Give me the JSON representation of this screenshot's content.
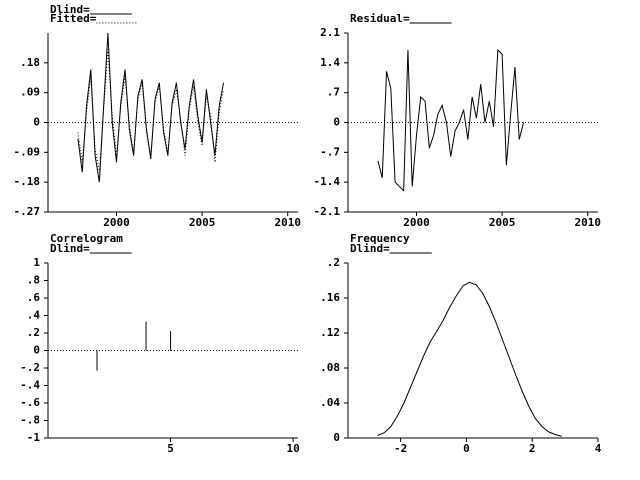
{
  "chart_data": [
    {
      "type": "line",
      "x": [
        1997.75,
        1998,
        1998.25,
        1998.5,
        1998.75,
        1999,
        1999.25,
        1999.5,
        1999.75,
        2000,
        2000.25,
        2000.5,
        2000.75,
        2001,
        2001.25,
        2001.5,
        2001.75,
        2002,
        2002.25,
        2002.5,
        2002.75,
        2003,
        2003.25,
        2003.5,
        2003.75,
        2004,
        2004.25,
        2004.5,
        2004.75,
        2005,
        2005.25,
        2005.5,
        2005.75,
        2006,
        2006.25
      ],
      "series": [
        {
          "name": "Dlind=",
          "color": "#000000",
          "linestyle": "solid",
          "values": [
            -0.05,
            -0.15,
            0.05,
            0.16,
            -0.1,
            -0.18,
            0.05,
            0.27,
            0.0,
            -0.12,
            0.06,
            0.16,
            -0.02,
            -0.1,
            0.08,
            0.13,
            -0.02,
            -0.11,
            0.07,
            0.12,
            -0.03,
            -0.1,
            0.06,
            0.12,
            0.0,
            -0.08,
            0.05,
            0.13,
            0.02,
            -0.06,
            0.1,
            0.0,
            -0.1,
            0.05,
            0.12
          ]
        },
        {
          "name": "Fitted=",
          "color": "#000000",
          "linestyle": "dotted",
          "values": [
            -0.03,
            -0.12,
            0.03,
            0.14,
            -0.08,
            -0.15,
            0.04,
            0.22,
            0.02,
            -0.1,
            0.05,
            0.14,
            -0.01,
            -0.09,
            0.07,
            0.12,
            -0.03,
            -0.1,
            0.06,
            0.11,
            -0.02,
            -0.09,
            0.05,
            0.1,
            0.01,
            -0.1,
            0.04,
            0.11,
            0.0,
            -0.07,
            0.08,
            0.02,
            -0.12,
            0.03,
            0.1
          ]
        }
      ],
      "xlim": [
        1996,
        2010.6
      ],
      "xticks": [
        2000,
        2005,
        2010
      ],
      "ylim": [
        -0.27,
        0.27
      ],
      "yticks": [
        {
          "value": -0.27,
          "label": "-.27"
        },
        {
          "value": -0.18,
          "label": "-.18"
        },
        {
          "value": -0.09,
          "label": "-.09"
        },
        0,
        {
          "value": 0.09,
          "label": ".09"
        },
        {
          "value": 0.18,
          "label": ".18"
        }
      ]
    },
    {
      "type": "line",
      "x": [
        1997.75,
        1998,
        1998.25,
        1998.5,
        1998.75,
        1999,
        1999.25,
        1999.5,
        1999.75,
        2000,
        2000.25,
        2000.5,
        2000.75,
        2001,
        2001.25,
        2001.5,
        2001.75,
        2002,
        2002.25,
        2002.5,
        2002.75,
        2003,
        2003.25,
        2003.5,
        2003.75,
        2004,
        2004.25,
        2004.5,
        2004.75,
        2005,
        2005.25,
        2005.5,
        2005.75,
        2006,
        2006.25
      ],
      "series": [
        {
          "name": "Residual=",
          "color": "#000000",
          "linestyle": "solid",
          "values": [
            -0.9,
            -1.3,
            1.2,
            0.8,
            -1.4,
            -1.5,
            -1.6,
            1.7,
            -1.5,
            -0.3,
            0.6,
            0.5,
            -0.6,
            -0.3,
            0.2,
            0.4,
            0.0,
            -0.8,
            -0.2,
            0.0,
            0.3,
            -0.4,
            0.6,
            0.1,
            0.9,
            0.0,
            0.5,
            -0.1,
            1.7,
            1.6,
            -1.0,
            0.2,
            1.3,
            -0.4,
            0.0
          ]
        }
      ],
      "xlim": [
        1996,
        2010.6
      ],
      "xticks": [
        2000,
        2005,
        2010
      ],
      "ylim": [
        -2.1,
        2.1
      ],
      "yticks": [
        -2.1,
        -1.4,
        {
          "value": -0.7,
          "label": "-.7"
        },
        0,
        {
          "value": 0.7,
          "label": ".7"
        },
        1.4,
        2.1
      ]
    },
    {
      "type": "bar",
      "title": "Correlogram",
      "series": [
        {
          "name": "Dlind=",
          "color": "#000000",
          "x": [
            2,
            4,
            5
          ],
          "values": [
            -0.23,
            0.33,
            0.22
          ]
        }
      ],
      "xlim": [
        0,
        10.2
      ],
      "xticks": [
        5,
        10
      ],
      "ylim": [
        -1,
        1
      ],
      "yticks": [
        -1,
        {
          "value": -0.8,
          "label": "-.8"
        },
        {
          "value": -0.6,
          "label": "-.6"
        },
        {
          "value": -0.4,
          "label": "-.4"
        },
        {
          "value": -0.2,
          "label": "-.2"
        },
        0,
        {
          "value": 0.2,
          "label": ".2"
        },
        {
          "value": 0.4,
          "label": ".4"
        },
        {
          "value": 0.6,
          "label": ".6"
        },
        {
          "value": 0.8,
          "label": ".8"
        },
        1
      ]
    },
    {
      "type": "line",
      "title": "Frequency",
      "x": [
        -2.7,
        -2.5,
        -2.3,
        -2.1,
        -1.9,
        -1.7,
        -1.5,
        -1.3,
        -1.1,
        -0.9,
        -0.7,
        -0.5,
        -0.3,
        -0.1,
        0.1,
        0.3,
        0.5,
        0.7,
        0.9,
        1.1,
        1.3,
        1.5,
        1.7,
        1.9,
        2.1,
        2.3,
        2.5,
        2.7,
        2.9
      ],
      "series": [
        {
          "name": "Dlind=",
          "color": "#000000",
          "linestyle": "solid",
          "values": [
            0.003,
            0.006,
            0.013,
            0.025,
            0.04,
            0.058,
            0.076,
            0.094,
            0.11,
            0.122,
            0.135,
            0.15,
            0.163,
            0.174,
            0.178,
            0.175,
            0.165,
            0.15,
            0.132,
            0.112,
            0.092,
            0.072,
            0.053,
            0.036,
            0.022,
            0.013,
            0.007,
            0.004,
            0.002
          ]
        }
      ],
      "xlim": [
        -3.6,
        4
      ],
      "xticks": [
        -2,
        0,
        2,
        4
      ],
      "ylim": [
        0,
        0.2
      ],
      "yticks": [
        0,
        {
          "value": 0.04,
          "label": ".04"
        },
        {
          "value": 0.08,
          "label": ".08"
        },
        {
          "value": 0.12,
          "label": ".12"
        },
        {
          "value": 0.16,
          "label": ".16"
        },
        {
          "value": 0.2,
          "label": ".2"
        }
      ]
    }
  ]
}
